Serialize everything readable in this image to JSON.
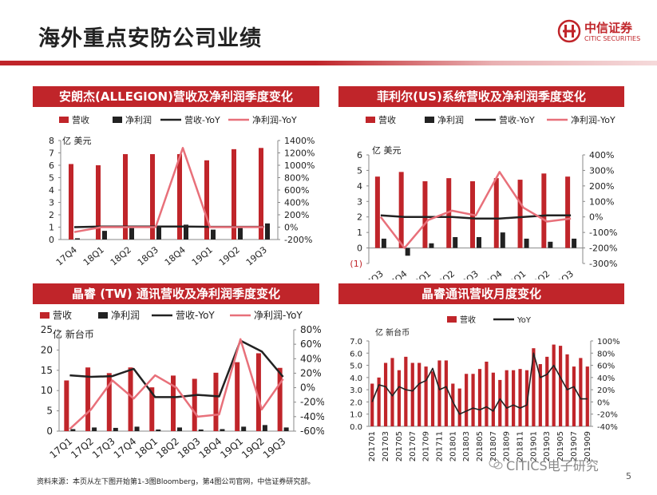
{
  "page": {
    "title": "海外重点安防公司业绩",
    "logo_cn": "中信证券",
    "logo_en": "CITIC SECURITIES",
    "footer": "资料来源：本页从左下图开始第1-3图Bloomberg，第4图公司官网，中信证券研究部。",
    "watermark": "CITICS电子研究",
    "page_number": "5"
  },
  "colors": {
    "red": "#c0252a",
    "black": "#222222",
    "pink": "#e8707a",
    "gray": "#555555"
  },
  "chart_data": [
    {
      "id": "allegion",
      "panel_title": "安朗杰(ALLEGION)营收及净利润季度变化",
      "type": "bar",
      "unit": "亿 美元",
      "legend": [
        "营收",
        "净利润",
        "营收-YoY",
        "净利润-YoY"
      ],
      "categories": [
        "17Q4",
        "18Q1",
        "18Q2",
        "18Q3",
        "18Q4",
        "19Q1",
        "19Q2",
        "19Q3"
      ],
      "yticks_left": [
        "0",
        "1",
        "2",
        "3",
        "4",
        "5",
        "6",
        "7",
        "8"
      ],
      "yticks_right": [
        "-200%",
        "0%",
        "200%",
        "400%",
        "600%",
        "800%",
        "1000%",
        "1200%",
        "1400%"
      ],
      "ylim_left": [
        0,
        8
      ],
      "ylim_right": [
        -200,
        1400
      ],
      "series": [
        {
          "name": "营收",
          "axis": "left",
          "kind": "bar",
          "values": [
            6.1,
            6.0,
            6.9,
            6.9,
            6.9,
            6.4,
            7.3,
            7.4
          ]
        },
        {
          "name": "净利润",
          "axis": "left",
          "kind": "bar",
          "values": [
            0.1,
            0.7,
            1.0,
            1.1,
            1.2,
            0.8,
            1.0,
            1.3
          ]
        },
        {
          "name": "营收-YoY",
          "axis": "right",
          "kind": "line",
          "values": [
            0,
            10,
            10,
            10,
            10,
            5,
            5,
            5
          ]
        },
        {
          "name": "净利润-YoY",
          "axis": "right",
          "kind": "line",
          "values": [
            -80,
            0,
            0,
            0,
            1280,
            0,
            0,
            0
          ]
        }
      ]
    },
    {
      "id": "flir",
      "panel_title": "菲利尔(US)系统营收及净利润季度变化",
      "type": "bar",
      "unit": "亿 美元",
      "legend": [
        "营收",
        "净利润",
        "营收-YoY",
        "净利润-YoY"
      ],
      "categories": [
        "17Q3",
        "17Q4",
        "18Q1",
        "18Q2",
        "18Q3",
        "18Q4",
        "19Q1",
        "19Q2",
        "19Q3"
      ],
      "yticks_left": [
        "(1)",
        "0",
        "1",
        "2",
        "3",
        "4",
        "5",
        "6"
      ],
      "yticks_right": [
        "-300%",
        "-200%",
        "-100%",
        "0%",
        "100%",
        "200%",
        "300%",
        "400%"
      ],
      "ylim_left": [
        -1,
        6
      ],
      "ylim_right": [
        -300,
        400
      ],
      "series": [
        {
          "name": "营收",
          "axis": "left",
          "kind": "bar",
          "values": [
            4.6,
            4.9,
            4.3,
            4.5,
            4.3,
            4.5,
            4.4,
            4.8,
            4.6
          ]
        },
        {
          "name": "净利润",
          "axis": "left",
          "kind": "bar",
          "values": [
            0.6,
            -0.5,
            0.3,
            0.7,
            0.7,
            1.0,
            0.6,
            0.4,
            0.6
          ]
        },
        {
          "name": "营收-YoY",
          "axis": "right",
          "kind": "line",
          "values": [
            10,
            0,
            0,
            0,
            -10,
            -10,
            0,
            10,
            10
          ]
        },
        {
          "name": "净利润-YoY",
          "axis": "right",
          "kind": "line",
          "values": [
            0,
            -200,
            -20,
            40,
            10,
            290,
            60,
            -30,
            -10
          ]
        }
      ]
    },
    {
      "id": "wnc",
      "panel_title": "晶睿 (TW) 通讯营收及净利润季度变化",
      "type": "bar",
      "unit": "亿 新台币",
      "legend": [
        "营收",
        "净利润",
        "营收-YoY",
        "净利润-YoY"
      ],
      "categories": [
        "17Q1",
        "17Q2",
        "17Q3",
        "17Q4",
        "18Q1",
        "18Q2",
        "18Q3",
        "18Q4",
        "19Q1",
        "19Q2",
        "19Q3"
      ],
      "yticks_left": [
        "0",
        "5",
        "10",
        "15",
        "20",
        "25"
      ],
      "yticks_right": [
        "-60%",
        "-40%",
        "-20%",
        "0%",
        "20%",
        "40%",
        "60%",
        "80%"
      ],
      "ylim_left": [
        0,
        25
      ],
      "ylim_right": [
        -60,
        80
      ],
      "series": [
        {
          "name": "营收",
          "axis": "left",
          "kind": "bar",
          "values": [
            12.5,
            15.7,
            14.3,
            15.7,
            10.8,
            13.7,
            12.9,
            14.4,
            17.0,
            19.2,
            15.6
          ]
        },
        {
          "name": "净利润",
          "axis": "left",
          "kind": "bar",
          "values": [
            0.5,
            0.9,
            0.8,
            1.1,
            0.4,
            0.9,
            0.4,
            0.5,
            1.1,
            1.5,
            0.9
          ]
        },
        {
          "name": "营收-YoY",
          "axis": "right",
          "kind": "line",
          "values": [
            17,
            15,
            16,
            26,
            -13,
            -13,
            -10,
            -12,
            65,
            50,
            15
          ]
        },
        {
          "name": "净利润-YoY",
          "axis": "right",
          "kind": "line",
          "values": [
            -57,
            -30,
            10,
            -15,
            17,
            0,
            -40,
            -37,
            67,
            -30,
            12
          ]
        }
      ]
    },
    {
      "id": "wnc_monthly",
      "panel_title": "晶睿通讯营收月度变化",
      "type": "bar",
      "unit": "亿 新台币",
      "legend": [
        "营收",
        "YoY"
      ],
      "categories": [
        "201701",
        "201702",
        "201703",
        "201704",
        "201705",
        "201706",
        "201707",
        "201708",
        "201709",
        "201710",
        "201711",
        "201712",
        "201801",
        "201802",
        "201803",
        "201804",
        "201805",
        "201806",
        "201807",
        "201808",
        "201809",
        "201810",
        "201811",
        "201812",
        "201901",
        "201902",
        "201903",
        "201904",
        "201905",
        "201906",
        "201907",
        "201908",
        "201909"
      ],
      "xtick_labels": [
        "201701",
        "201703",
        "201705",
        "201707",
        "201709",
        "201711",
        "201801",
        "201803",
        "201805",
        "201807",
        "201809",
        "201811",
        "201901",
        "201903",
        "201905",
        "201907",
        "201909"
      ],
      "yticks_left": [
        "0.0",
        "1.0",
        "2.0",
        "3.0",
        "4.0",
        "5.0",
        "6.0",
        "7.0"
      ],
      "yticks_right": [
        "-40%",
        "-20%",
        "0%",
        "20%",
        "40%",
        "60%",
        "80%",
        "100%"
      ],
      "ylim_left": [
        0,
        7
      ],
      "ylim_right": [
        -40,
        100
      ],
      "series": [
        {
          "name": "营收",
          "axis": "left",
          "kind": "bar",
          "values": [
            3.5,
            4.0,
            5.2,
            5.6,
            4.6,
            5.7,
            5.2,
            5.2,
            4.9,
            4.5,
            5.4,
            5.4,
            3.5,
            3.1,
            4.3,
            4.3,
            4.7,
            5.3,
            4.4,
            3.8,
            4.6,
            4.6,
            4.7,
            4.6,
            6.4,
            5.1,
            5.7,
            6.7,
            6.6,
            5.9,
            4.9,
            5.6,
            4.9
          ]
        },
        {
          "name": "YoY",
          "axis": "right",
          "kind": "line",
          "values": [
            0,
            28,
            25,
            10,
            25,
            20,
            18,
            30,
            35,
            55,
            20,
            25,
            0,
            -20,
            -15,
            -10,
            -13,
            -8,
            -15,
            5,
            -10,
            -5,
            -10,
            -5,
            80,
            40,
            45,
            60,
            40,
            20,
            25,
            5,
            5
          ]
        }
      ]
    }
  ]
}
